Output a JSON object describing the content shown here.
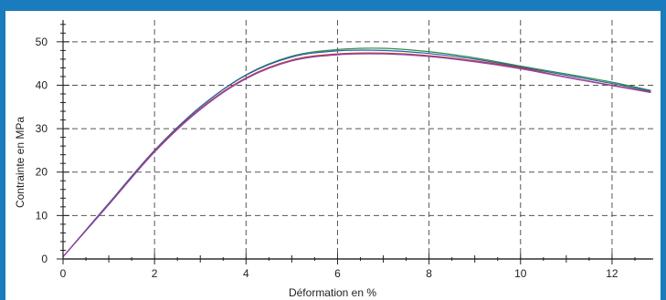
{
  "colors": {
    "frame_border": "#1a7bbd",
    "background": "#ffffff",
    "grid": "#555555",
    "axis": "#222222"
  },
  "chart_data": {
    "type": "line",
    "title": "",
    "xlabel": "Déformation en %",
    "ylabel": "Contrainte en MPa",
    "xlim": [
      0,
      12.9
    ],
    "ylim": [
      0,
      55
    ],
    "xticks": [
      0,
      2,
      4,
      6,
      8,
      10,
      12
    ],
    "yticks": [
      0,
      10,
      20,
      30,
      40,
      50
    ],
    "grid": true,
    "grid_style": "dashed",
    "legend": "none",
    "series": [
      {
        "color": "#2b8a3e",
        "x": [
          0,
          1,
          2,
          3,
          4,
          5,
          6,
          7,
          8,
          9,
          10,
          11,
          12,
          12.85
        ],
        "values": [
          0.5,
          12.8,
          25.0,
          35.0,
          42.4,
          46.7,
          48.2,
          48.5,
          47.7,
          46.3,
          44.4,
          42.6,
          40.7,
          38.8
        ]
      },
      {
        "color": "#2a5db0",
        "x": [
          0,
          1,
          2,
          3,
          4,
          5,
          6,
          7,
          8,
          9,
          10,
          11,
          12,
          12.85
        ],
        "values": [
          0.5,
          12.8,
          25.0,
          35.0,
          42.3,
          46.5,
          47.9,
          48.0,
          47.3,
          46.0,
          44.2,
          42.3,
          40.4,
          38.6
        ]
      },
      {
        "color": "#c0392b",
        "x": [
          0,
          1,
          2,
          3,
          4,
          5,
          6,
          7,
          8,
          9,
          10,
          11,
          12,
          12.85
        ],
        "values": [
          0.5,
          12.6,
          24.8,
          34.6,
          41.7,
          45.8,
          47.2,
          47.4,
          46.8,
          45.6,
          44.0,
          41.9,
          40.0,
          38.4
        ]
      },
      {
        "color": "#8e44ad",
        "x": [
          0,
          1,
          2,
          3,
          4,
          5,
          6,
          7,
          8,
          9,
          10,
          11,
          12,
          12.85
        ],
        "values": [
          0.5,
          12.5,
          24.6,
          34.4,
          41.5,
          45.6,
          47.0,
          47.2,
          46.6,
          45.4,
          43.8,
          41.8,
          39.9,
          38.3
        ]
      },
      {
        "color": "#444444",
        "x": [
          0,
          12.85
        ],
        "values": [
          0,
          0
        ]
      }
    ]
  }
}
